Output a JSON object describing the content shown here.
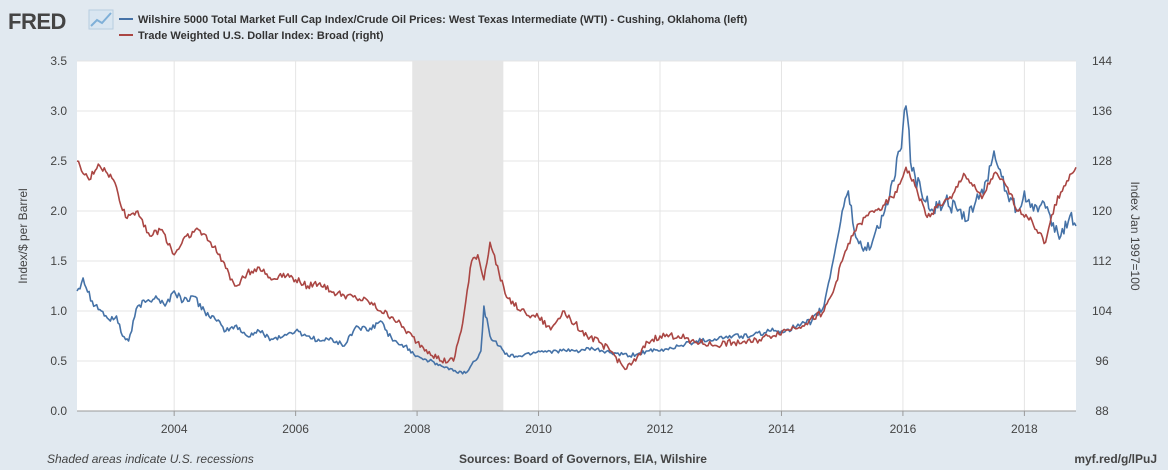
{
  "branding": {
    "logo_text": "FRED",
    "logo_icon": "line-chart-icon",
    "colors": {
      "logo": "#444444",
      "logo_icon_accent": "#7fb0d8"
    }
  },
  "legend": [
    {
      "label": "Wilshire 5000 Total Market Full Cap Index/Crude Oil Prices: West Texas Intermediate (WTI) - Cushing, Oklahoma (left)",
      "color": "#4572a7"
    },
    {
      "label": "Trade Weighted U.S. Dollar Index: Broad (right)",
      "color": "#aa4643"
    }
  ],
  "footer": {
    "recession_note": "Shaded areas indicate U.S. recessions",
    "sources": "Sources: Board of Governors, EIA, Wilshire",
    "url": "myf.red/g/lPuJ"
  },
  "colors": {
    "background": "#e1e9f0",
    "plot_background": "#ffffff",
    "gridline": "#e4e4e4",
    "recession_shade": "#e5e5e5"
  },
  "chart_data": {
    "type": "line",
    "xlabel": "",
    "ylabel_left": "Index/$ per Barrel",
    "ylabel_right": "Index Jan 1997=100",
    "x_range": [
      2002.4,
      2018.85
    ],
    "x_ticks": [
      "2004",
      "2006",
      "2008",
      "2010",
      "2012",
      "2014",
      "2016",
      "2018"
    ],
    "ylim_left": [
      0.0,
      3.5
    ],
    "y_ticks_left": [
      "0.0",
      "0.5",
      "1.0",
      "1.5",
      "2.0",
      "2.5",
      "3.0",
      "3.5"
    ],
    "ylim_right": [
      88,
      144
    ],
    "y_ticks_right": [
      "88",
      "96",
      "104",
      "112",
      "120",
      "128",
      "136",
      "144"
    ],
    "grid": true,
    "legend_position": "top",
    "recessions": [
      [
        2007.92,
        2009.42
      ]
    ],
    "series": [
      {
        "name": "Wilshire 5000 Total Market Full Cap Index/Crude Oil Prices: West Texas Intermediate (WTI) - Cushing, Oklahoma (left)",
        "axis": "left",
        "color": "#4572a7",
        "x": [
          2002.4,
          2002.5,
          2002.65,
          2002.8,
          2002.95,
          2003.05,
          2003.15,
          2003.25,
          2003.4,
          2003.55,
          2003.7,
          2003.85,
          2004.0,
          2004.15,
          2004.3,
          2004.5,
          2004.7,
          2004.85,
          2005.0,
          2005.2,
          2005.4,
          2005.6,
          2005.8,
          2006.0,
          2006.2,
          2006.4,
          2006.6,
          2006.8,
          2007.0,
          2007.2,
          2007.4,
          2007.6,
          2007.8,
          2008.0,
          2008.2,
          2008.4,
          2008.6,
          2008.8,
          2008.95,
          2009.05,
          2009.1,
          2009.2,
          2009.35,
          2009.5,
          2009.7,
          2010.0,
          2010.3,
          2010.6,
          2010.9,
          2011.2,
          2011.5,
          2011.8,
          2012.0,
          2012.3,
          2012.6,
          2012.9,
          2013.2,
          2013.5,
          2013.8,
          2014.0,
          2014.3,
          2014.5,
          2014.7,
          2014.85,
          2015.0,
          2015.1,
          2015.2,
          2015.35,
          2015.5,
          2015.7,
          2015.85,
          2015.95,
          2016.05,
          2016.15,
          2016.3,
          2016.5,
          2016.7,
          2016.9,
          2017.05,
          2017.2,
          2017.4,
          2017.5,
          2017.7,
          2017.9,
          2018.0,
          2018.15,
          2018.3,
          2018.45,
          2018.6,
          2018.75,
          2018.85
        ],
        "y": [
          1.2,
          1.33,
          1.1,
          1.0,
          0.9,
          0.95,
          0.75,
          0.7,
          1.05,
          1.1,
          1.15,
          1.05,
          1.2,
          1.1,
          1.15,
          1.0,
          0.9,
          0.8,
          0.85,
          0.75,
          0.8,
          0.72,
          0.75,
          0.8,
          0.75,
          0.7,
          0.72,
          0.65,
          0.85,
          0.8,
          0.9,
          0.7,
          0.65,
          0.55,
          0.5,
          0.45,
          0.4,
          0.38,
          0.5,
          0.6,
          1.05,
          0.75,
          0.65,
          0.55,
          0.55,
          0.6,
          0.6,
          0.6,
          0.62,
          0.58,
          0.55,
          0.6,
          0.6,
          0.65,
          0.7,
          0.72,
          0.75,
          0.75,
          0.8,
          0.8,
          0.85,
          0.9,
          1.05,
          1.5,
          2.0,
          2.2,
          1.8,
          1.6,
          1.7,
          2.0,
          2.3,
          2.6,
          3.05,
          2.4,
          2.2,
          2.0,
          2.1,
          2.0,
          1.9,
          2.1,
          2.3,
          2.6,
          2.2,
          2.0,
          2.2,
          2.0,
          2.1,
          1.85,
          1.75,
          1.95,
          1.85
        ]
      },
      {
        "name": "Trade Weighted U.S. Dollar Index: Broad (right)",
        "axis": "right",
        "color": "#aa4643",
        "x": [
          2002.4,
          2002.5,
          2002.6,
          2002.75,
          2002.9,
          2003.0,
          2003.2,
          2003.4,
          2003.6,
          2003.8,
          2004.0,
          2004.2,
          2004.4,
          2004.6,
          2004.8,
          2005.0,
          2005.2,
          2005.4,
          2005.6,
          2005.8,
          2006.0,
          2006.2,
          2006.4,
          2006.6,
          2006.8,
          2007.0,
          2007.2,
          2007.4,
          2007.6,
          2007.8,
          2008.0,
          2008.2,
          2008.4,
          2008.6,
          2008.75,
          2008.9,
          2009.0,
          2009.1,
          2009.2,
          2009.35,
          2009.5,
          2009.7,
          2010.0,
          2010.2,
          2010.4,
          2010.6,
          2010.8,
          2011.0,
          2011.2,
          2011.4,
          2011.6,
          2011.8,
          2012.0,
          2012.3,
          2012.6,
          2012.9,
          2013.2,
          2013.5,
          2013.8,
          2014.1,
          2014.4,
          2014.7,
          2014.85,
          2015.0,
          2015.15,
          2015.3,
          2015.5,
          2015.7,
          2015.9,
          2016.05,
          2016.2,
          2016.4,
          2016.6,
          2016.8,
          2017.0,
          2017.15,
          2017.3,
          2017.5,
          2017.7,
          2017.9,
          2018.1,
          2018.2,
          2018.35,
          2018.5,
          2018.65,
          2018.85
        ],
        "y": [
          128,
          126,
          125,
          127.5,
          126,
          125,
          119,
          120,
          116,
          117,
          113,
          116,
          117,
          115,
          112,
          108,
          110,
          111,
          109,
          110,
          109,
          108,
          108.5,
          107,
          106.5,
          106,
          105.5,
          104,
          103,
          101,
          99,
          97.5,
          96,
          96,
          102,
          112,
          113,
          109,
          115,
          110,
          106,
          104,
          103,
          101,
          104,
          102,
          100,
          99,
          97.5,
          95,
          96,
          99,
          100,
          100,
          99,
          98.5,
          99,
          99,
          100,
          101,
          102,
          104,
          107,
          112,
          116,
          118,
          120,
          121,
          123,
          127,
          124,
          119,
          121,
          122,
          126,
          124,
          122,
          126,
          124,
          120,
          119,
          117,
          115,
          121,
          124,
          127
        ]
      }
    ]
  }
}
